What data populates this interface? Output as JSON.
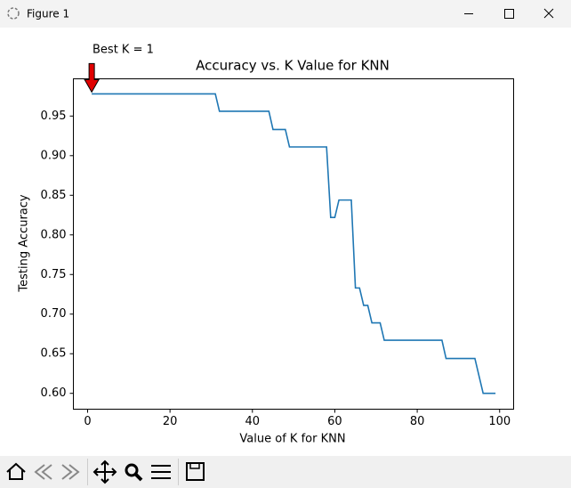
{
  "window": {
    "title": "Figure 1"
  },
  "chart_data": {
    "type": "line",
    "title": "Accuracy vs. K Value for KNN",
    "x_label": "Value of K for KNN",
    "y_label": "Testing Accuracy",
    "annotation": "Best K = 1",
    "x": [
      1,
      2,
      3,
      4,
      5,
      6,
      7,
      8,
      9,
      10,
      11,
      12,
      13,
      14,
      15,
      16,
      17,
      18,
      19,
      20,
      21,
      22,
      23,
      24,
      25,
      26,
      27,
      28,
      29,
      30,
      31,
      32,
      33,
      34,
      35,
      36,
      37,
      38,
      39,
      40,
      41,
      42,
      43,
      44,
      45,
      46,
      47,
      48,
      49,
      50,
      51,
      52,
      53,
      54,
      55,
      56,
      57,
      58,
      59,
      60,
      61,
      62,
      63,
      64,
      65,
      66,
      67,
      68,
      69,
      70,
      71,
      72,
      73,
      74,
      75,
      76,
      77,
      78,
      79,
      80,
      81,
      82,
      83,
      84,
      85,
      86,
      87,
      88,
      89,
      90,
      91,
      92,
      93,
      94,
      95,
      96,
      97,
      98,
      99
    ],
    "series": [
      {
        "color": "#1f77b4",
        "values": [
          0.978,
          0.978,
          0.978,
          0.978,
          0.978,
          0.978,
          0.978,
          0.978,
          0.978,
          0.978,
          0.978,
          0.978,
          0.978,
          0.978,
          0.978,
          0.978,
          0.978,
          0.978,
          0.978,
          0.978,
          0.978,
          0.978,
          0.978,
          0.978,
          0.978,
          0.978,
          0.978,
          0.978,
          0.978,
          0.978,
          0.978,
          0.956,
          0.956,
          0.956,
          0.956,
          0.956,
          0.956,
          0.956,
          0.956,
          0.956,
          0.956,
          0.956,
          0.956,
          0.956,
          0.933,
          0.933,
          0.933,
          0.933,
          0.911,
          0.911,
          0.911,
          0.911,
          0.911,
          0.911,
          0.911,
          0.911,
          0.911,
          0.911,
          0.822,
          0.822,
          0.844,
          0.844,
          0.844,
          0.844,
          0.733,
          0.733,
          0.711,
          0.711,
          0.689,
          0.689,
          0.689,
          0.667,
          0.667,
          0.667,
          0.667,
          0.667,
          0.667,
          0.667,
          0.667,
          0.667,
          0.667,
          0.667,
          0.667,
          0.667,
          0.667,
          0.667,
          0.644,
          0.644,
          0.644,
          0.644,
          0.644,
          0.644,
          0.644,
          0.644,
          0.622,
          0.6,
          0.6,
          0.6,
          0.6
        ]
      }
    ],
    "xlim": [
      -3.45,
      103.4
    ],
    "ylim": [
      0.58,
      0.997
    ],
    "xticks": [
      0,
      20,
      40,
      60,
      80,
      100
    ],
    "yticks": [
      {
        "value": 0.6,
        "label": "0.60"
      },
      {
        "value": 0.65,
        "label": "0.65"
      },
      {
        "value": 0.7,
        "label": "0.70"
      },
      {
        "value": 0.75,
        "label": "0.75"
      },
      {
        "value": 0.8,
        "label": "0.80"
      },
      {
        "value": 0.85,
        "label": "0.85"
      },
      {
        "value": 0.9,
        "label": "0.90"
      },
      {
        "value": 0.95,
        "label": "0.95"
      }
    ],
    "grid": false
  }
}
